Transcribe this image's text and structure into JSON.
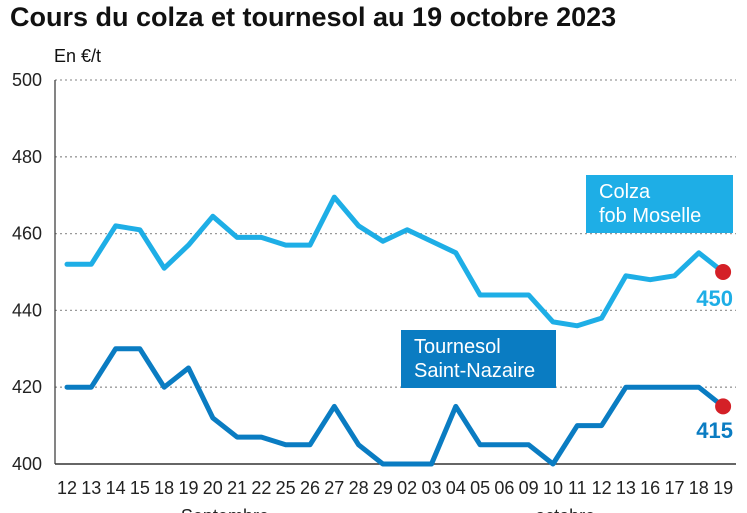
{
  "chart_data": {
    "type": "line",
    "title": "Cours du colza et tournesol au 19 octobre 2023",
    "ylabel": "En €/t",
    "ylim": [
      400,
      500
    ],
    "yticks": [
      400,
      420,
      440,
      460,
      480,
      500
    ],
    "grid": true,
    "categories": [
      "12",
      "13",
      "14",
      "15",
      "18",
      "19",
      "20",
      "21",
      "22",
      "25",
      "26",
      "27",
      "28",
      "29",
      "02",
      "03",
      "04",
      "05",
      "06",
      "09",
      "10",
      "11",
      "12",
      "13",
      "16",
      "17",
      "18",
      "19"
    ],
    "months": [
      {
        "label": "Septembre",
        "start": 0,
        "end": 13
      },
      {
        "label": "octobre",
        "start": 14,
        "end": 27
      }
    ],
    "series": [
      {
        "name": "Colza fob Moselle",
        "label_lines": [
          "Colza",
          "fob Moselle"
        ],
        "color": "#1eaee6",
        "end_label": "450",
        "values": [
          452,
          452,
          462,
          461,
          451,
          457,
          464.5,
          459,
          459,
          457,
          457,
          469.5,
          462,
          458,
          461,
          458,
          455,
          444,
          444,
          444,
          437,
          436,
          438,
          449,
          448,
          449,
          455,
          450
        ]
      },
      {
        "name": "Tournesol Saint-Nazaire",
        "label_lines": [
          "Tournesol",
          "Saint-Nazaire"
        ],
        "color": "#0a7cc2",
        "end_label": "415",
        "values": [
          420,
          420,
          430,
          430,
          420,
          425,
          412,
          407,
          407,
          405,
          405,
          415,
          405,
          400,
          400,
          400,
          415,
          405,
          405,
          405,
          400,
          410,
          410,
          420,
          420,
          420,
          420,
          415
        ]
      }
    ],
    "end_marker_color": "#d42027"
  }
}
